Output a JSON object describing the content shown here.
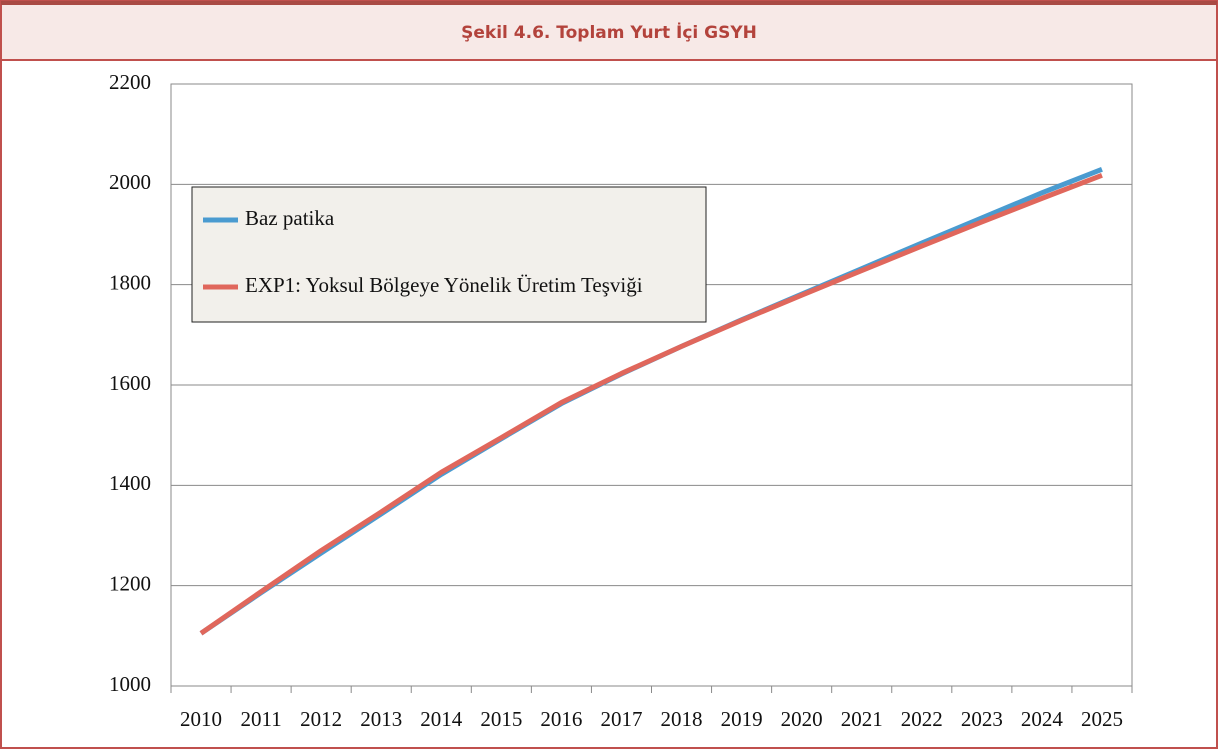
{
  "chart_data": {
    "type": "line",
    "title": "Şekil 4.6. Toplam Yurt İçi GSYH",
    "categories": [
      "2010",
      "2011",
      "2012",
      "2013",
      "2014",
      "2015",
      "2016",
      "2017",
      "2018",
      "2019",
      "2020",
      "2021",
      "2022",
      "2023",
      "2024",
      "2025"
    ],
    "series": [
      {
        "name": "Baz patika",
        "color": "#4a9bd0",
        "values": [
          1105,
          1186,
          1265,
          1343,
          1422,
          1493,
          1563,
          1622,
          1677,
          1730,
          1781,
          1832,
          1883,
          1933,
          1983,
          2030
        ]
      },
      {
        "name": "EXP1: Yoksul Bölgeye Yönelik Üretim Teşviği",
        "color": "#e0675c",
        "values": [
          1105,
          1188,
          1270,
          1347,
          1426,
          1495,
          1565,
          1623,
          1677,
          1729,
          1779,
          1828,
          1877,
          1925,
          1972,
          2018
        ]
      }
    ],
    "ylim": [
      1000,
      2200
    ],
    "yticks": [
      1000,
      1200,
      1400,
      1600,
      1800,
      2000,
      2200
    ],
    "grid": true
  }
}
